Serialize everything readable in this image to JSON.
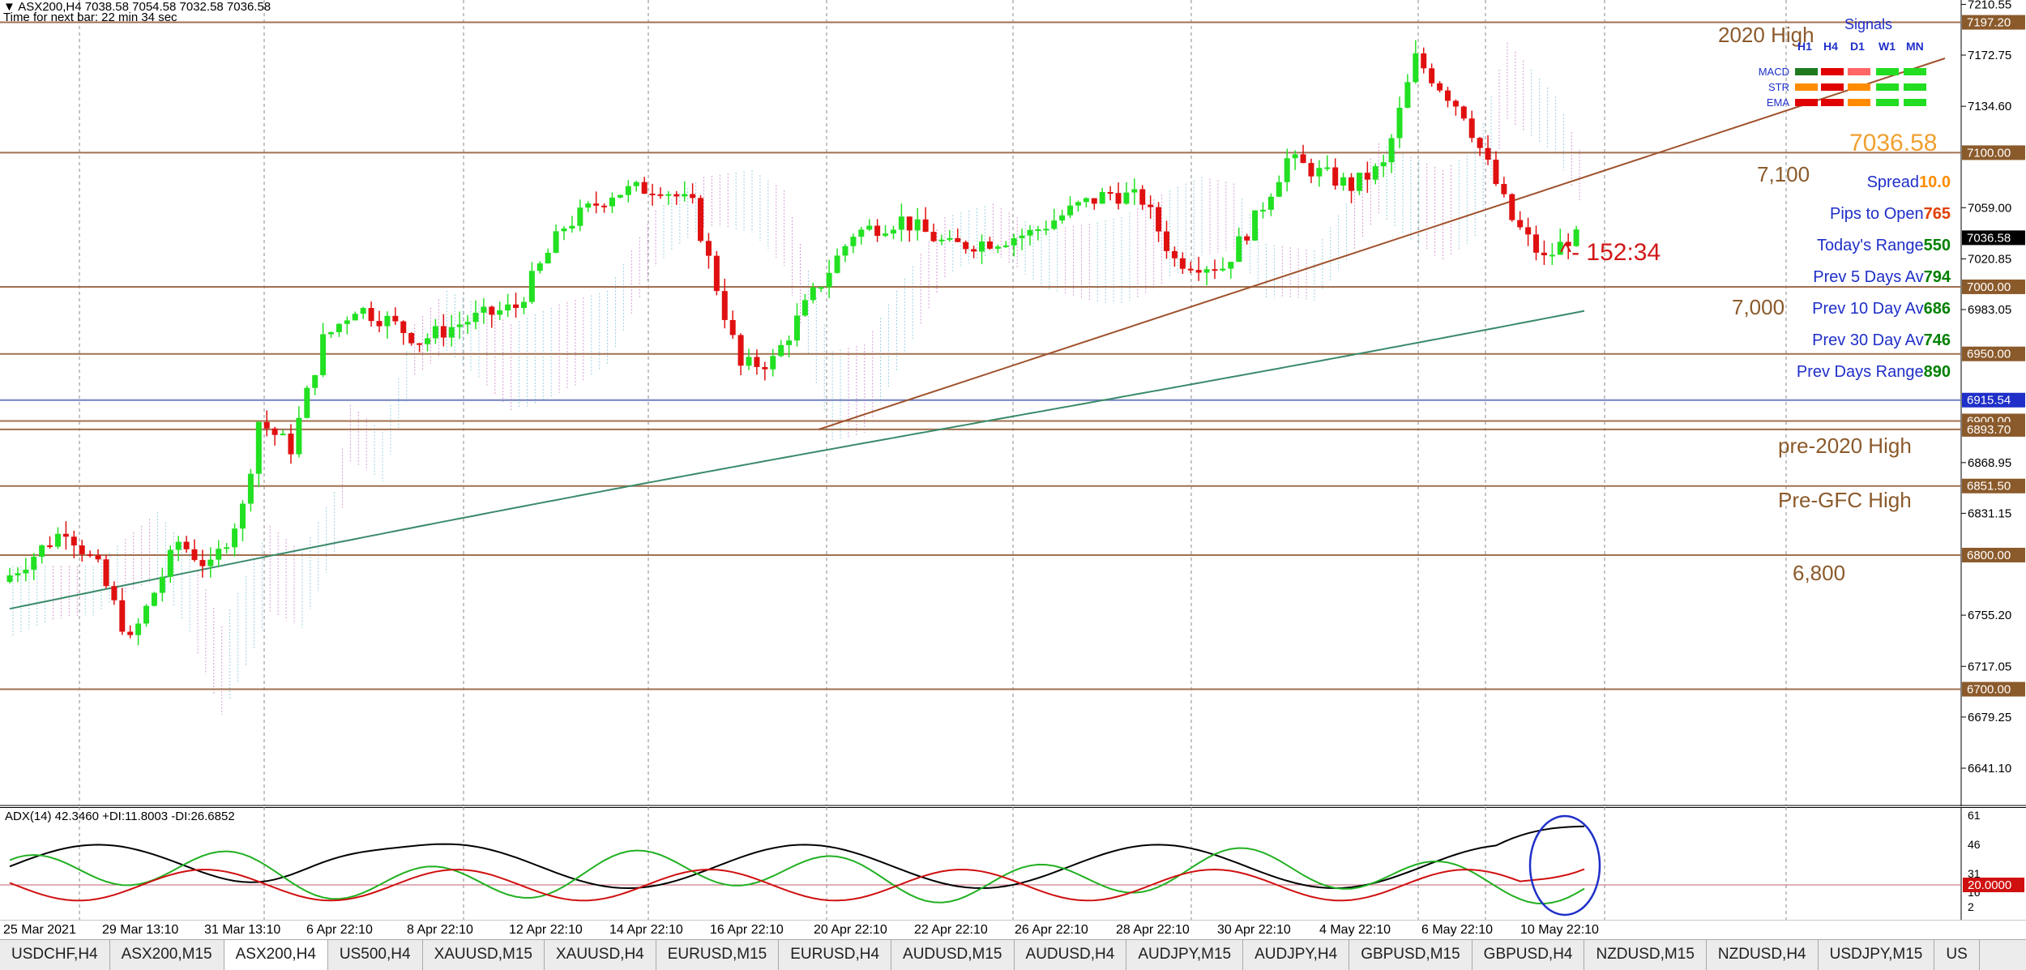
{
  "header": {
    "symbol_line": "ASX200,H4  7038.58 7054.58 7032.58 7036.58",
    "timer": "Time for next bar: 22 min 34 sec"
  },
  "price_axis": {
    "ticks": [
      "7210.55",
      "7172.75",
      "7134.60",
      "7059.00",
      "7020.85",
      "6983.05",
      "6868.95",
      "6831.15",
      "6755.20",
      "6717.05",
      "6679.25",
      "6641.10"
    ],
    "tags": [
      {
        "text": "7197.20",
        "bg": "#8b5a2b"
      },
      {
        "text": "7100.00",
        "bg": "#8b5a2b"
      },
      {
        "text": "7036.58",
        "bg": "#000000"
      },
      {
        "text": "7000.00",
        "bg": "#8b5a2b"
      },
      {
        "text": "6950.00",
        "bg": "#8b5a2b"
      },
      {
        "text": "6915.54",
        "bg": "#1f2fc8"
      },
      {
        "text": "6900.00",
        "bg": "#8b5a2b"
      },
      {
        "text": "6893.70",
        "bg": "#8b5a2b"
      },
      {
        "text": "6851.50",
        "bg": "#8b5a2b"
      },
      {
        "text": "6800.00",
        "bg": "#8b5a2b"
      },
      {
        "text": "6700.00",
        "bg": "#8b5a2b"
      }
    ]
  },
  "level_labels": {
    "high_2020": "2020 High",
    "l7100": "7,100",
    "l7000": "7,000",
    "pre2020": "pre-2020 High",
    "pregfc": "Pre-GFC High",
    "l6800": "6,800"
  },
  "annotation": {
    "countdown": "^- 152:34"
  },
  "signals": {
    "title": "Signals",
    "timeframes": [
      "H1",
      "H4",
      "D1",
      "W1",
      "MN"
    ],
    "rows": [
      {
        "label": "MACD",
        "colors": [
          "#1f7a1f",
          "#e00000",
          "#ff6666",
          "#22dd22",
          "#22dd22"
        ]
      },
      {
        "label": "STR",
        "colors": [
          "#ff8c00",
          "#e00000",
          "#ff8c00",
          "#22dd22",
          "#22dd22"
        ]
      },
      {
        "label": "EMA",
        "colors": [
          "#e00000",
          "#e00000",
          "#ff8c00",
          "#22dd22",
          "#22dd22"
        ]
      }
    ]
  },
  "info_panel": {
    "price": "7036.58",
    "rows": [
      {
        "label": "Spread",
        "value": "10.0",
        "value_color": "#ff8c00"
      },
      {
        "label": "Pips to Open",
        "value": "765",
        "value_color": "#e04000"
      },
      {
        "label": "Today's Range",
        "value": "550",
        "value_color": "#008000"
      },
      {
        "label": "Prev 5 Days Av",
        "value": "794",
        "value_color": "#008000"
      },
      {
        "label": "Prev 10 Day Av",
        "value": "686",
        "value_color": "#008000"
      },
      {
        "label": "Prev 30 Day Av",
        "value": "746",
        "value_color": "#008000"
      },
      {
        "label": "Prev Days Range",
        "value": "890",
        "value_color": "#008000"
      }
    ]
  },
  "adx": {
    "label": "ADX(14) 42.3460 +DI:11.8003 -DI:26.6852",
    "ticks": [
      "61",
      "46",
      "31",
      "16",
      "2"
    ],
    "level_tag": "20.0000"
  },
  "time_axis": {
    "labels": [
      "25 Mar 2021",
      "29 Mar 13:10",
      "31 Mar 13:10",
      "6 Apr 22:10",
      "8 Apr 22:10",
      "12 Apr 22:10",
      "14 Apr 22:10",
      "16 Apr 22:10",
      "20 Apr 22:10",
      "22 Apr 22:10",
      "26 Apr 22:10",
      "28 Apr 22:10",
      "30 Apr 22:10",
      "4 May 22:10",
      "6 May 22:10",
      "10 May 22:10"
    ]
  },
  "tabs": [
    "USDCHF,H4",
    "ASX200,M15",
    "ASX200,H4",
    "US500,H4",
    "XAUUSD,M15",
    "XAUUSD,H4",
    "EURUSD,M15",
    "EURUSD,H4",
    "AUDUSD,M15",
    "AUDUSD,H4",
    "AUDJPY,M15",
    "AUDJPY,H4",
    "GBPUSD,M15",
    "GBPUSD,H4",
    "NZDUSD,M15",
    "NZDUSD,H4",
    "USDJPY,M15",
    "US"
  ],
  "active_tab": "ASX200,H4",
  "colors": {
    "bull": "#22e022",
    "bear": "#e01010",
    "level": "#8b5a2b",
    "trendline": "#a0522d",
    "ma": "#3a8a6a",
    "adx": "#000000",
    "plus_di": "#22b022",
    "minus_di": "#d01010",
    "ellipse": "#1f2fc8"
  }
}
